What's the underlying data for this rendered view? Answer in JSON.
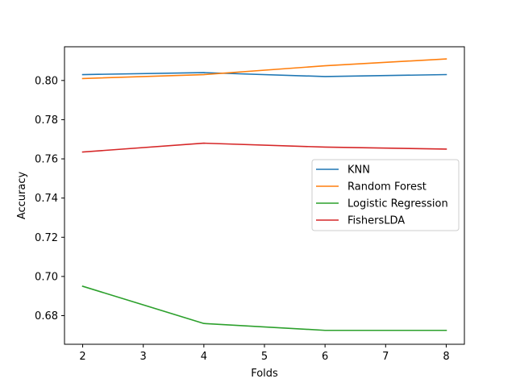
{
  "chart_data": {
    "type": "line",
    "title": "",
    "xlabel": "Folds",
    "ylabel": "Accuracy",
    "x": [
      2,
      4,
      6,
      8
    ],
    "xlim": [
      1.7,
      8.3
    ],
    "ylim": [
      0.6654,
      0.8172
    ],
    "xticks": [
      "2",
      "3",
      "4",
      "5",
      "6",
      "7",
      "8"
    ],
    "yticks": [
      "0.68",
      "0.70",
      "0.72",
      "0.74",
      "0.76",
      "0.78",
      "0.80"
    ],
    "grid": false,
    "legend_position": "center-right",
    "series": [
      {
        "name": "KNN",
        "color": "#1f77b4",
        "values": [
          0.803,
          0.804,
          0.802,
          0.803
        ]
      },
      {
        "name": "Random Forest",
        "color": "#ff7f0e",
        "values": [
          0.801,
          0.803,
          0.8075,
          0.811
        ]
      },
      {
        "name": "Logistic Regression",
        "color": "#2ca02c",
        "values": [
          0.695,
          0.676,
          0.6725,
          0.6725
        ]
      },
      {
        "name": "FishersLDA",
        "color": "#d62728",
        "values": [
          0.7635,
          0.768,
          0.766,
          0.765
        ]
      }
    ]
  }
}
